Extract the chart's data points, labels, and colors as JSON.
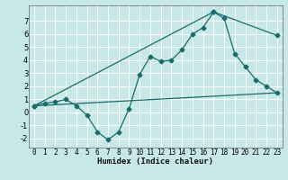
{
  "xlabel": "Humidex (Indice chaleur)",
  "ylabel": "",
  "bg_color": "#c8e8e8",
  "grid_color": "#ffffff",
  "line_color": "#1a6b6b",
  "xlim": [
    -0.5,
    23.5
  ],
  "ylim": [
    -2.7,
    8.2
  ],
  "xticks": [
    0,
    1,
    2,
    3,
    4,
    5,
    6,
    7,
    8,
    9,
    10,
    11,
    12,
    13,
    14,
    15,
    16,
    17,
    18,
    19,
    20,
    21,
    22,
    23
  ],
  "yticks": [
    -2,
    -1,
    0,
    1,
    2,
    3,
    4,
    5,
    6,
    7
  ],
  "line1_x": [
    0,
    1,
    2,
    3,
    4,
    5,
    6,
    7,
    8,
    9,
    10,
    11,
    12,
    13,
    14,
    15,
    16,
    17,
    18,
    19,
    20,
    21,
    22,
    23
  ],
  "line1_y": [
    0.5,
    0.7,
    0.8,
    1.0,
    0.5,
    -0.2,
    -1.5,
    -2.1,
    -1.5,
    0.3,
    2.9,
    4.3,
    3.9,
    4.0,
    4.8,
    6.0,
    6.5,
    7.7,
    7.2,
    4.5,
    3.5,
    2.5,
    2.0,
    1.5
  ],
  "line2_x": [
    0,
    17,
    23
  ],
  "line2_y": [
    0.5,
    7.7,
    5.9
  ],
  "line3_x": [
    0,
    23
  ],
  "line3_y": [
    0.5,
    1.5
  ],
  "xlabel_fontsize": 6.5,
  "tick_fontsize": 5.5
}
